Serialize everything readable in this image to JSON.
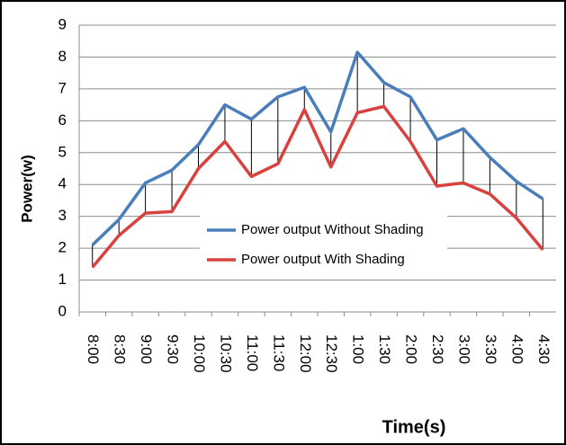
{
  "chart_data": {
    "type": "line",
    "x_label": "Time(s)",
    "y_label": "Power(w)",
    "categories": [
      "8:00",
      "8:30",
      "9:00",
      "9:30",
      "10:00",
      "10:30",
      "11:00",
      "11:30",
      "12:00",
      "12:30",
      "1:00",
      "1:30",
      "2:00",
      "2:30",
      "3:00",
      "3:30",
      "4:00",
      "4:30"
    ],
    "series": [
      {
        "name": "Power output Without Shading",
        "color": "#4a7ebb",
        "values": [
          2.1,
          2.9,
          4.05,
          4.45,
          5.25,
          6.5,
          6.05,
          6.75,
          7.05,
          5.65,
          8.15,
          7.2,
          6.75,
          5.4,
          5.75,
          4.85,
          4.1,
          3.55
        ]
      },
      {
        "name": "Power output With Shading",
        "color": "#d9413e",
        "values": [
          1.4,
          2.4,
          3.1,
          3.15,
          4.5,
          5.35,
          4.25,
          4.65,
          6.35,
          4.55,
          6.25,
          6.45,
          5.35,
          3.95,
          4.05,
          3.7,
          2.95,
          1.95
        ]
      }
    ],
    "ylim": [
      0,
      9
    ],
    "yticks": [
      0,
      1,
      2,
      3,
      4,
      5,
      6,
      7,
      8,
      9
    ],
    "grid": true,
    "drop_lines": true,
    "legend_position": "center"
  }
}
